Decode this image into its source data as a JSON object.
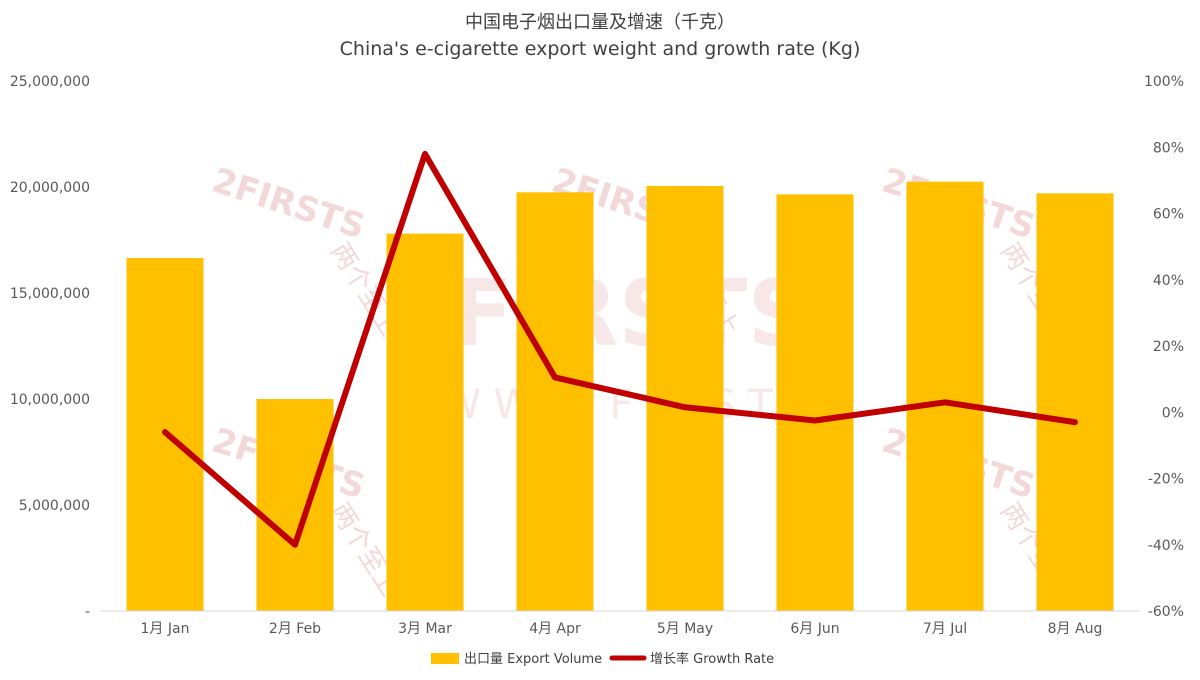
{
  "chart_data": {
    "type": "bar",
    "title": "中国电子烟出口量及增速（千克）",
    "subtitle": "China's e-cigarette export weight and growth rate (Kg)",
    "categories": [
      "1月 Jan",
      "2月 Feb",
      "3月 Mar",
      "4月 Apr",
      "5月 May",
      "6月 Jun",
      "7月 Jul",
      "8月 Aug"
    ],
    "series": [
      {
        "name": "出口量 Export Volume",
        "type": "bar",
        "axis": "left",
        "color": "#FFC000",
        "values": [
          16650000,
          10000000,
          17800000,
          19750000,
          20050000,
          19650000,
          20250000,
          19700000
        ]
      },
      {
        "name": "增长率 Growth Rate",
        "type": "line",
        "axis": "right",
        "color": "#C00000",
        "values": [
          -6,
          -40,
          78,
          10.5,
          1.5,
          -2.5,
          3,
          -3
        ]
      }
    ],
    "y_left": {
      "ylim": [
        0,
        25000000
      ],
      "tick_labels": [
        "-",
        "5,000,000",
        "10,000,000",
        "15,000,000",
        "20,000,000",
        "25,000,000"
      ]
    },
    "y_right": {
      "ylim": [
        -60,
        100
      ],
      "tick_labels": [
        "-60%",
        "-40%",
        "-20%",
        "0%",
        "20%",
        "40%",
        "60%",
        "80%",
        "100%"
      ]
    },
    "grid": false,
    "legend": "bottom"
  },
  "watermark": {
    "brand": "2FIRSTS",
    "brand_cn": "两个至上",
    "url": "W W W . 2 F I R S T S"
  }
}
